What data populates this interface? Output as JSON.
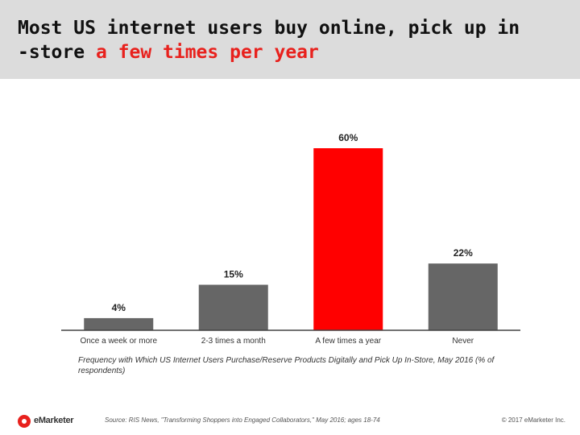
{
  "header": {
    "title_line1": "Most US internet users buy online, pick up in",
    "title_line2_prefix": "-store ",
    "title_line2_accent": "a few times per year"
  },
  "chart_data": {
    "type": "bar",
    "categories": [
      "Once a week or more",
      "2-3 times a month",
      "A few times a year",
      "Never"
    ],
    "values": [
      4,
      15,
      60,
      22
    ],
    "value_labels": [
      "4%",
      "15%",
      "60%",
      "22%"
    ],
    "highlight_index": 2,
    "ylim": [
      0,
      60
    ],
    "grid": false,
    "subtitle": "Frequency with Which US Internet Users Purchase/Reserve Products Digitally and Pick Up In-Store, May 2016 (% of respondents)"
  },
  "colors": {
    "bar": "#666666",
    "highlight": "#ff0000",
    "axis": "#444444",
    "accent": "#e8211d"
  },
  "footer": {
    "logo_text": "eMarketer",
    "source": "Source: RIS News, \"Transforming Shoppers into Engaged Collaborators,\" May 2016; ages 18-74",
    "copyright": "© 2017 eMarketer Inc."
  }
}
